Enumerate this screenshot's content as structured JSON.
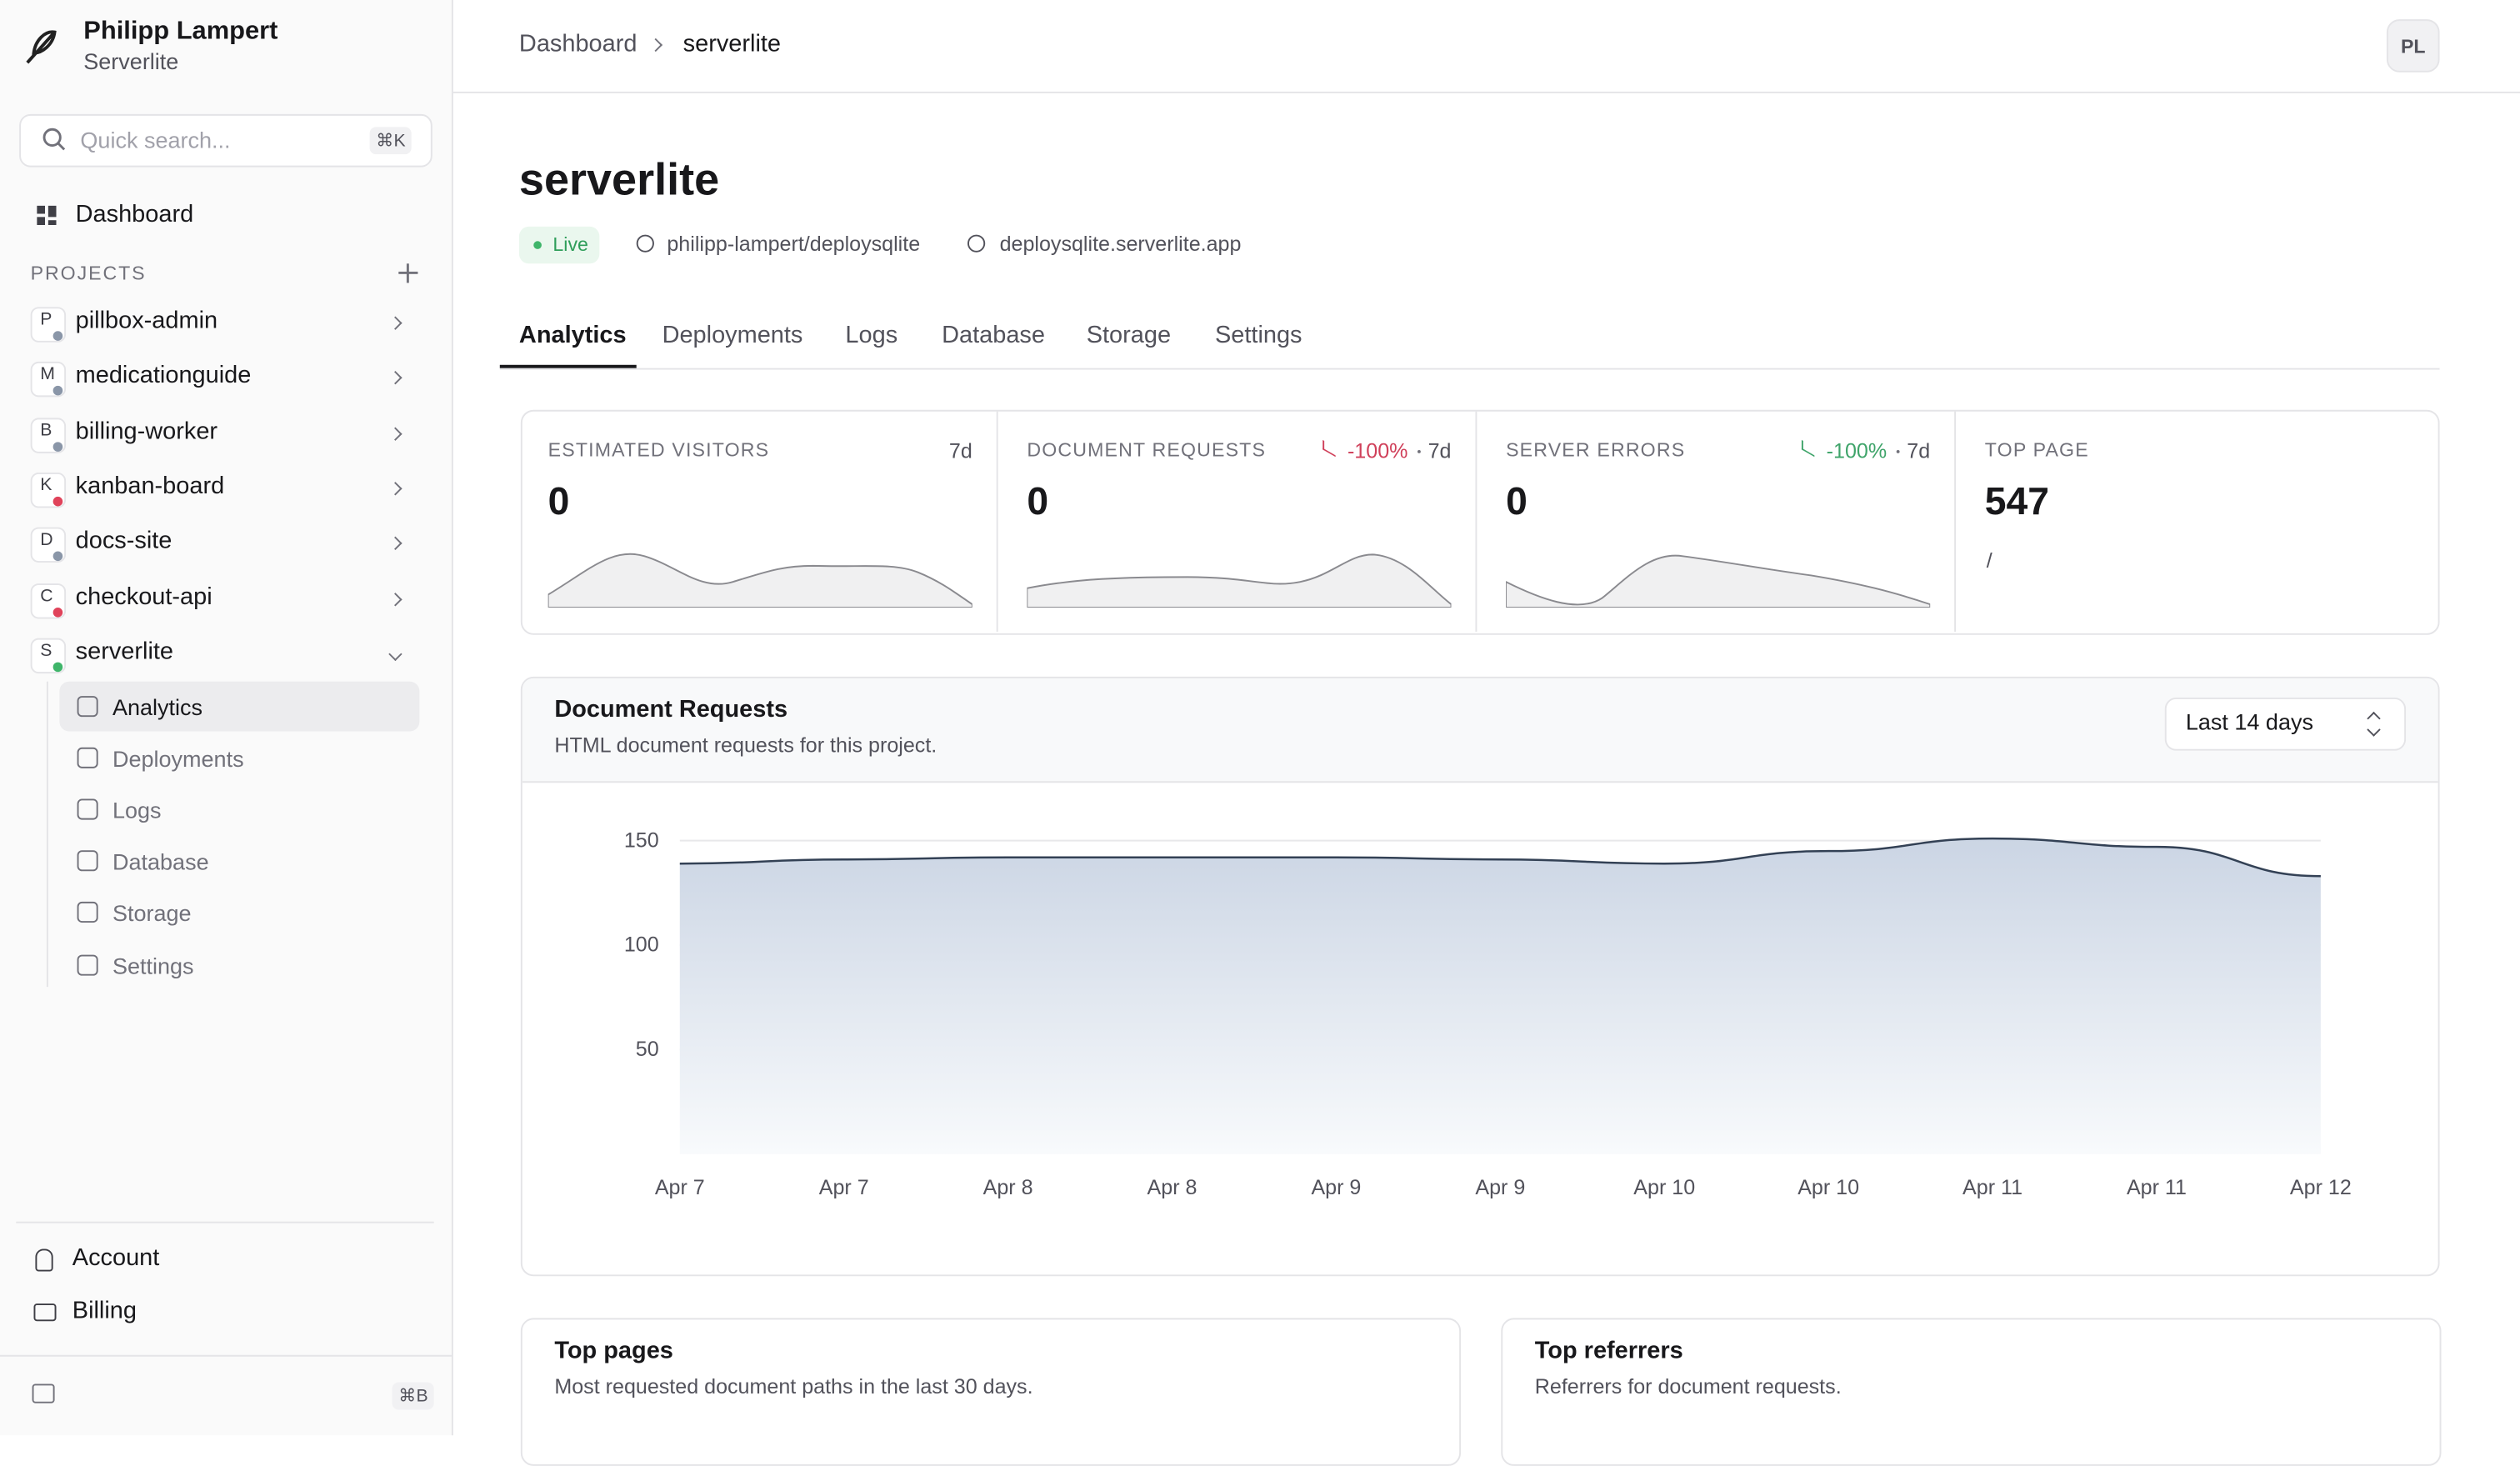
{
  "sidebar": {
    "user": "Philipp Lampert",
    "org": "Serverlite",
    "search": "Quick search...",
    "search_key": "⌘K",
    "dashboard": "Dashboard",
    "projects_label": "PROJECTS",
    "projects": [
      {
        "initial": "P",
        "name": "pillbox-admin",
        "dot": "#8a96a8"
      },
      {
        "initial": "M",
        "name": "medicationguide",
        "dot": "#8a96a8"
      },
      {
        "initial": "B",
        "name": "billing-worker",
        "dot": "#8a96a8"
      },
      {
        "initial": "K",
        "name": "kanban-board",
        "dot": "#e0435a"
      },
      {
        "initial": "D",
        "name": "docs-site",
        "dot": "#8a96a8"
      },
      {
        "initial": "C",
        "name": "checkout-api",
        "dot": "#e0435a"
      },
      {
        "initial": "S",
        "name": "serverlite",
        "dot": "#3fb56a"
      }
    ],
    "subnav": [
      "Analytics",
      "Deployments",
      "Logs",
      "Database",
      "Storage",
      "Settings"
    ],
    "account": "Account",
    "billing": "Billing",
    "toggle_key": "⌘B"
  },
  "header": {
    "breadcrumb": [
      "Dashboard",
      "serverlite"
    ],
    "avatar": "PL"
  },
  "project": {
    "title": "serverlite",
    "status": "Live",
    "repo": "philipp-lampert/deploysqlite",
    "domain": "deploysqlite.serverlite.app"
  },
  "tabs": [
    "Analytics",
    "Deployments",
    "Logs",
    "Database",
    "Storage",
    "Settings"
  ],
  "stats": [
    {
      "label": "ESTIMATED VISITORS",
      "period": "7d",
      "value": 0
    },
    {
      "label": "DOCUMENT REQUESTS",
      "change": "-100%",
      "change_color": "#d0405a",
      "period": "7d",
      "value": 0
    },
    {
      "label": "SERVER ERRORS",
      "change": "-100%",
      "change_color": "#3fa46a",
      "period": "7d",
      "value": 0
    },
    {
      "label": "TOP PAGE",
      "value": 547,
      "path": "/"
    }
  ],
  "chart_data": {
    "type": "area",
    "title": "Document Requests",
    "subtitle": "HTML document requests for this project.",
    "range_select": "Last 14 days",
    "categories": [
      "Apr 7",
      "Apr 7",
      "Apr 8",
      "Apr 8",
      "Apr 9",
      "Apr 9",
      "Apr 10",
      "Apr 10",
      "Apr 11",
      "Apr 11",
      "Apr 12"
    ],
    "values": [
      139,
      141,
      142,
      142,
      142,
      141,
      139,
      145,
      151,
      147,
      133
    ],
    "ylim": [
      0,
      160
    ],
    "yticks": [
      50,
      100,
      150
    ],
    "color": "#334155",
    "grid": true
  },
  "panels": [
    {
      "title": "Top pages",
      "subtitle": "Most requested document paths in the last 30 days."
    },
    {
      "title": "Top referrers",
      "subtitle": "Referrers for document requests."
    }
  ]
}
